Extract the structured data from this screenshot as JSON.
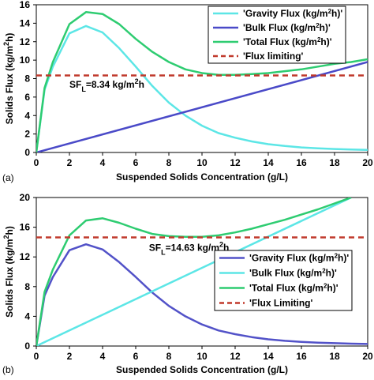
{
  "chart_data": [
    {
      "type": "line",
      "panel_label": "(a)",
      "xlabel": "Suspended Solids Concentration (g/L)",
      "ylabel_pre": "Solids Flux (kg/m",
      "ylabel_sup": "2",
      "ylabel_post": "h)",
      "xlim": [
        0,
        20
      ],
      "ylim": [
        0,
        16
      ],
      "xticks": [
        0,
        2,
        4,
        6,
        8,
        10,
        12,
        14,
        16,
        18,
        20
      ],
      "xtick_labels": [
        "0",
        "2",
        "4",
        "6",
        "8",
        "10",
        "12",
        "14",
        "16",
        "18",
        "20"
      ],
      "yticks": [
        0,
        2,
        4,
        6,
        8,
        10,
        12,
        14,
        16
      ],
      "legend_position": "top-right",
      "annotation": {
        "pre": "SF",
        "sub": "L",
        "mid": "=8.34 kg/m",
        "sup": "2",
        "post": "h",
        "x": 2.0,
        "y": 7.0
      },
      "series": [
        {
          "name": "'Gravity Flux (kg/m2h)'",
          "leg_pre": "'Gravity Flux (kg/m",
          "leg_sup": "2",
          "leg_post": "h)'",
          "color": "#5ce6e6",
          "dash": "",
          "x": [
            0,
            0.5,
            1,
            2,
            3,
            4,
            5,
            6,
            7,
            8,
            9,
            10,
            11,
            12,
            13,
            14,
            15,
            16,
            17,
            18,
            19,
            20
          ],
          "y": [
            0,
            6.8,
            9.3,
            12.9,
            13.7,
            13.0,
            11.3,
            9.3,
            7.2,
            5.4,
            4.0,
            2.9,
            2.1,
            1.6,
            1.2,
            0.9,
            0.7,
            0.55,
            0.45,
            0.38,
            0.32,
            0.28
          ]
        },
        {
          "name": "'Bulk Flux (kg/m2h)'",
          "leg_pre": "'Bulk Flux (kg/m",
          "leg_sup": "2",
          "leg_post": "h)'",
          "color": "#4a4ac8",
          "dash": "",
          "x": [
            0,
            20
          ],
          "y": [
            0,
            9.8
          ]
        },
        {
          "name": "'Total Flux (kg/m2h)'",
          "leg_pre": "'Total Flux (kg/m",
          "leg_sup": "2",
          "leg_post": "h)'",
          "color": "#2ecc71",
          "dash": "",
          "x": [
            0,
            0.5,
            1,
            2,
            3,
            4,
            5,
            6,
            7,
            8,
            9,
            10,
            11,
            12,
            13,
            14,
            15,
            16,
            17,
            18,
            19,
            20
          ],
          "y": [
            0,
            7.0,
            9.8,
            13.9,
            15.2,
            15.0,
            13.9,
            12.3,
            10.9,
            9.8,
            9.0,
            8.6,
            8.4,
            8.4,
            8.5,
            8.6,
            8.8,
            9.0,
            9.3,
            9.6,
            9.8,
            10.1
          ]
        },
        {
          "name": "'Flux limiting'",
          "leg_pre": "'Flux limiting'",
          "leg_sup": "",
          "leg_post": "",
          "color": "#c0392b",
          "dash": "7,5",
          "x": [
            0,
            20
          ],
          "y": [
            8.34,
            8.34
          ]
        }
      ]
    },
    {
      "type": "line",
      "panel_label": "(b)",
      "xlabel": "Suspended Solids Concentration (g/L)",
      "ylabel_pre": "Solids Flux (kg/m",
      "ylabel_sup": "2",
      "ylabel_post": "h)",
      "xlim": [
        0,
        20
      ],
      "ylim": [
        0,
        20
      ],
      "xticks": [
        0,
        2,
        4,
        6,
        8,
        10,
        12,
        14,
        16,
        18,
        20
      ],
      "xtick_labels": [
        "0",
        "2",
        "4",
        "6",
        "8",
        "10",
        "12",
        "14",
        "16",
        "18",
        "20"
      ],
      "yticks": [
        0,
        4,
        8,
        12,
        16,
        20
      ],
      "legend_position": "right",
      "annotation": {
        "pre": "SF",
        "sub": "L",
        "mid": "=14.63 kg/m",
        "sup": "2",
        "post": "h",
        "x": 6.8,
        "y": 12.8
      },
      "series": [
        {
          "name": "'Gravity Flux (kg/m2h)'",
          "leg_pre": "'Gravity Flux (kg/m",
          "leg_sup": "2",
          "leg_post": "h)'",
          "color": "#5252c8",
          "dash": "",
          "x": [
            0,
            0.5,
            1,
            2,
            3,
            4,
            5,
            6,
            7,
            8,
            9,
            10,
            11,
            12,
            13,
            14,
            15,
            16,
            17,
            18,
            19,
            20
          ],
          "y": [
            0,
            6.8,
            9.3,
            12.9,
            13.7,
            13.0,
            11.3,
            9.3,
            7.2,
            5.4,
            4.0,
            2.9,
            2.1,
            1.6,
            1.2,
            0.9,
            0.7,
            0.55,
            0.45,
            0.38,
            0.32,
            0.28
          ]
        },
        {
          "name": "'Bulk Flux (kg/m2h)'",
          "leg_pre": "'Bulk Flux (kg/m",
          "leg_sup": "2",
          "leg_post": "h)'",
          "color": "#5ce6e6",
          "dash": "",
          "x": [
            0,
            19
          ],
          "y": [
            0,
            20
          ]
        },
        {
          "name": "'Total Flux (kg/m2h)'",
          "leg_pre": "'Total Flux (kg/m",
          "leg_sup": "2",
          "leg_post": "h)'",
          "color": "#2ecc71",
          "dash": "",
          "x": [
            0,
            0.5,
            1,
            2,
            3,
            4,
            5,
            6,
            7,
            8,
            9,
            10,
            11,
            12,
            13,
            14,
            15,
            16,
            17,
            18,
            19
          ],
          "y": [
            0,
            7.3,
            10.3,
            14.9,
            16.9,
            17.2,
            16.6,
            15.8,
            15.1,
            14.8,
            14.7,
            14.7,
            14.9,
            15.3,
            15.8,
            16.4,
            17.0,
            17.7,
            18.4,
            19.2,
            20.0
          ]
        },
        {
          "name": "'Flux Limiting'",
          "leg_pre": "'Flux Limiting'",
          "leg_sup": "",
          "leg_post": "",
          "color": "#c0392b",
          "dash": "7,5",
          "x": [
            0,
            20
          ],
          "y": [
            14.63,
            14.63
          ]
        }
      ]
    }
  ]
}
